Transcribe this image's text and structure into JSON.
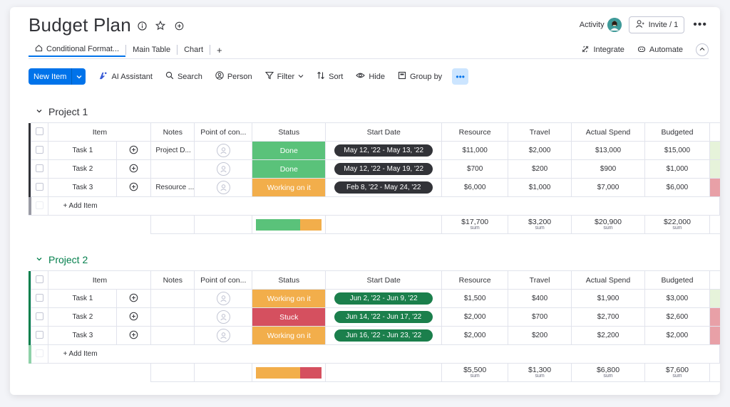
{
  "header": {
    "title": "Budget Plan",
    "activity_label": "Activity",
    "invite_label": "Invite / 1"
  },
  "tabs": [
    {
      "label": "Conditional Format..."
    },
    {
      "label": "Main Table"
    },
    {
      "label": "Chart"
    },
    {
      "label": "+"
    }
  ],
  "tabs_right": {
    "integrate_label": "Integrate",
    "automate_label": "Automate"
  },
  "toolbar": {
    "new_item_label": "New Item",
    "ai_label": "AI Assistant",
    "search_label": "Search",
    "person_label": "Person",
    "filter_label": "Filter",
    "sort_label": "Sort",
    "hide_label": "Hide",
    "group_by_label": "Group by"
  },
  "columns": {
    "item": "Item",
    "notes": "Notes",
    "poc": "Point of con...",
    "status": "Status",
    "start_date": "Start Date",
    "resource": "Resource",
    "travel": "Travel",
    "actual_spend": "Actual Spend",
    "budgeted": "Budgeted"
  },
  "colors": {
    "done": "#5ac27a",
    "working": "#f2ae4b",
    "stuck": "#d5505f",
    "group1": "#323338",
    "group2": "#037f4c",
    "pill_dark": "#323338",
    "pill_green": "#1b7f4c"
  },
  "groups": [
    {
      "title": "Project 1",
      "add_item_label": "+ Add Item",
      "rows": [
        {
          "name": "Task 1",
          "notes": "Project D...",
          "status": "Done",
          "date": "May 12, '22 - May 13, '22",
          "resource": "$11,000",
          "travel": "$2,000",
          "actual": "$13,000",
          "budgeted": "$15,000"
        },
        {
          "name": "Task 2",
          "notes": "",
          "status": "Done",
          "date": "May 12, '22 - May 19, '22",
          "resource": "$700",
          "travel": "$200",
          "actual": "$900",
          "budgeted": "$1,000"
        },
        {
          "name": "Task 3",
          "notes": "Resource ...",
          "status": "Working on it",
          "date": "Feb 8, '22 - May 24, '22",
          "resource": "$6,000",
          "travel": "$1,000",
          "actual": "$7,000",
          "budgeted": "$6,000"
        }
      ],
      "sums": {
        "resource": "$17,700",
        "travel": "$3,200",
        "actual": "$20,900",
        "budgeted": "$22,000",
        "label": "sum"
      },
      "status_bar": [
        0.67,
        0.33
      ]
    },
    {
      "title": "Project 2",
      "add_item_label": "+ Add Item",
      "rows": [
        {
          "name": "Task 1",
          "notes": "",
          "status": "Working on it",
          "date": "Jun 2, '22 - Jun 9, '22",
          "resource": "$1,500",
          "travel": "$400",
          "actual": "$1,900",
          "budgeted": "$3,000"
        },
        {
          "name": "Task 2",
          "notes": "",
          "status": "Stuck",
          "date": "Jun 14, '22 - Jun 17, '22",
          "resource": "$2,000",
          "travel": "$700",
          "actual": "$2,700",
          "budgeted": "$2,600"
        },
        {
          "name": "Task 3",
          "notes": "",
          "status": "Working on it",
          "date": "Jun 16, '22 - Jun 23, '22",
          "resource": "$2,000",
          "travel": "$200",
          "actual": "$2,200",
          "budgeted": "$2,000"
        }
      ],
      "sums": {
        "resource": "$5,500",
        "travel": "$1,300",
        "actual": "$6,800",
        "budgeted": "$7,600",
        "label": "sum"
      },
      "status_bar": [
        0.67,
        0.33
      ]
    }
  ]
}
